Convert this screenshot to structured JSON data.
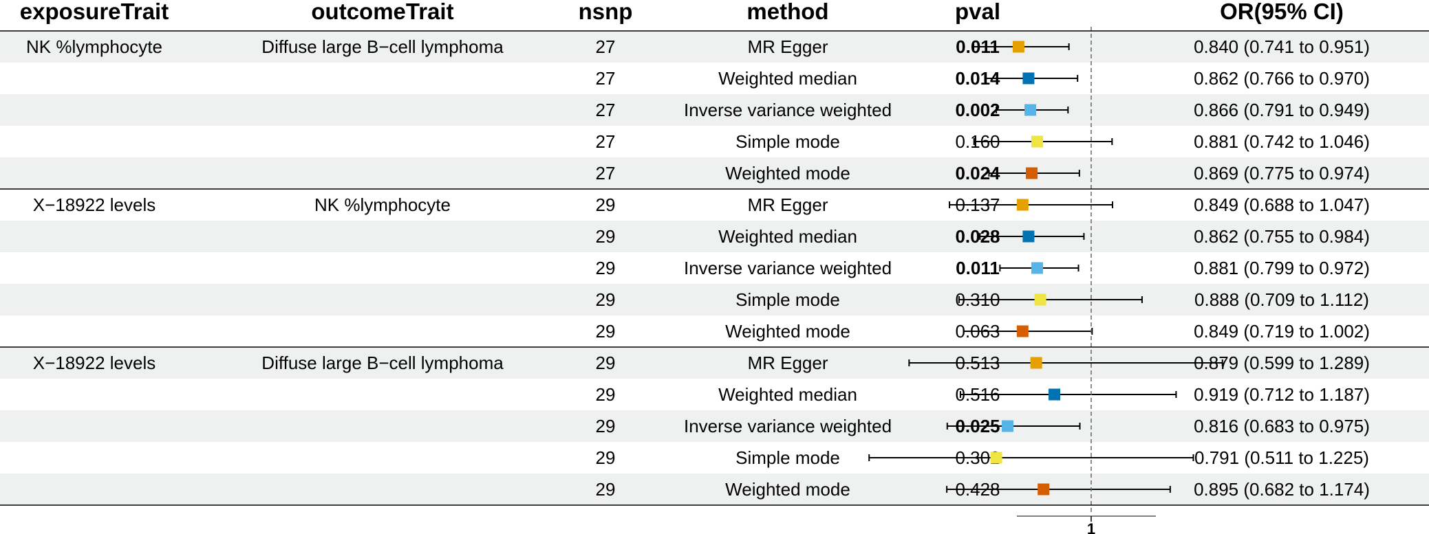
{
  "chart_data": {
    "type": "forest",
    "columns": {
      "exposure": "exposureTrait",
      "outcome": "outcomeTrait",
      "nsnp": "nsnp",
      "method": "method",
      "pval": "pval",
      "or": "OR(95% CI)"
    },
    "reference_line": 1,
    "x_tick_labels": [
      "1"
    ],
    "method_colors": {
      "MR Egger": "#E69F00",
      "Weighted median": "#0072B2",
      "Inverse variance weighted": "#56B4E9",
      "Simple mode": "#F0E442",
      "Weighted mode": "#D55E00"
    },
    "significance_threshold": 0.05,
    "rows": [
      {
        "exposure": "NK %lymphocyte",
        "outcome": "Diffuse large B−cell lymphoma",
        "nsnp": "27",
        "method": "MR Egger",
        "pval": "0.011",
        "or": 0.84,
        "lo": 0.741,
        "hi": 0.951,
        "or_text": "0.840 (0.741 to 0.951)"
      },
      {
        "exposure": "",
        "outcome": "",
        "nsnp": "27",
        "method": "Weighted median",
        "pval": "0.014",
        "or": 0.862,
        "lo": 0.766,
        "hi": 0.97,
        "or_text": "0.862 (0.766 to 0.970)"
      },
      {
        "exposure": "",
        "outcome": "",
        "nsnp": "27",
        "method": "Inverse variance weighted",
        "pval": "0.002",
        "or": 0.866,
        "lo": 0.791,
        "hi": 0.949,
        "or_text": "0.866 (0.791 to 0.949)"
      },
      {
        "exposure": "",
        "outcome": "",
        "nsnp": "27",
        "method": "Simple mode",
        "pval": "0.160",
        "or": 0.881,
        "lo": 0.742,
        "hi": 1.046,
        "or_text": "0.881 (0.742 to 1.046)"
      },
      {
        "exposure": "",
        "outcome": "",
        "nsnp": "27",
        "method": "Weighted mode",
        "pval": "0.024",
        "or": 0.869,
        "lo": 0.775,
        "hi": 0.974,
        "or_text": "0.869 (0.775 to 0.974)"
      },
      {
        "exposure": "X−18922 levels",
        "outcome": "NK %lymphocyte",
        "nsnp": "29",
        "method": "MR Egger",
        "pval": "0.137",
        "or": 0.849,
        "lo": 0.688,
        "hi": 1.047,
        "or_text": "0.849 (0.688 to 1.047)"
      },
      {
        "exposure": "",
        "outcome": "",
        "nsnp": "29",
        "method": "Weighted median",
        "pval": "0.028",
        "or": 0.862,
        "lo": 0.755,
        "hi": 0.984,
        "or_text": "0.862 (0.755 to 0.984)"
      },
      {
        "exposure": "",
        "outcome": "",
        "nsnp": "29",
        "method": "Inverse variance weighted",
        "pval": "0.011",
        "or": 0.881,
        "lo": 0.799,
        "hi": 0.972,
        "or_text": "0.881 (0.799 to 0.972)"
      },
      {
        "exposure": "",
        "outcome": "",
        "nsnp": "29",
        "method": "Simple mode",
        "pval": "0.310",
        "or": 0.888,
        "lo": 0.709,
        "hi": 1.112,
        "or_text": "0.888 (0.709 to 1.112)"
      },
      {
        "exposure": "",
        "outcome": "",
        "nsnp": "29",
        "method": "Weighted mode",
        "pval": "0.063",
        "or": 0.849,
        "lo": 0.719,
        "hi": 1.002,
        "or_text": "0.849 (0.719 to 1.002)"
      },
      {
        "exposure": "X−18922 levels",
        "outcome": "Diffuse large B−cell lymphoma",
        "nsnp": "29",
        "method": "MR Egger",
        "pval": "0.513",
        "or": 0.879,
        "lo": 0.599,
        "hi": 1.289,
        "or_text": "0.879 (0.599 to 1.289)"
      },
      {
        "exposure": "",
        "outcome": "",
        "nsnp": "29",
        "method": "Weighted median",
        "pval": "0.516",
        "or": 0.919,
        "lo": 0.712,
        "hi": 1.187,
        "or_text": "0.919 (0.712 to 1.187)"
      },
      {
        "exposure": "",
        "outcome": "",
        "nsnp": "29",
        "method": "Inverse variance weighted",
        "pval": "0.025",
        "or": 0.816,
        "lo": 0.683,
        "hi": 0.975,
        "or_text": "0.816 (0.683 to 0.975)"
      },
      {
        "exposure": "",
        "outcome": "",
        "nsnp": "29",
        "method": "Simple mode",
        "pval": "0.302",
        "or": 0.791,
        "lo": 0.511,
        "hi": 1.225,
        "or_text": "0.791 (0.511 to 1.225)"
      },
      {
        "exposure": "",
        "outcome": "",
        "nsnp": "29",
        "method": "Weighted mode",
        "pval": "0.428",
        "or": 0.895,
        "lo": 0.682,
        "hi": 1.174,
        "or_text": "0.895 (0.682 to 1.174)"
      }
    ]
  }
}
